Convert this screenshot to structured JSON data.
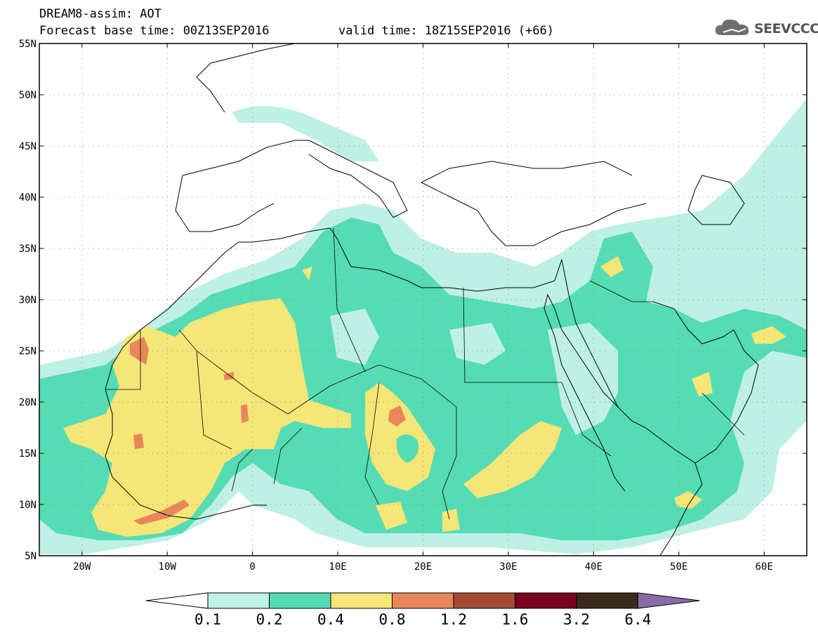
{
  "header": {
    "title_line1": "DREAM8-assim: AOT",
    "title_line2": "Forecast base time: 00Z13SEP2016",
    "valid_time": "valid time: 18Z15SEP2016 (+66)"
  },
  "logo": {
    "text": "SEEVCCC",
    "icon": "cloud-icon"
  },
  "map": {
    "lon_range": [
      -25,
      65
    ],
    "lat_range": [
      5,
      55
    ],
    "y_ticks": [
      "5N",
      "10N",
      "15N",
      "20N",
      "25N",
      "30N",
      "35N",
      "40N",
      "45N",
      "50N",
      "55N"
    ],
    "x_ticks": [
      "20W",
      "10W",
      "0",
      "10E",
      "20E",
      "30E",
      "40E",
      "50E",
      "60E"
    ],
    "grid": "dotted"
  },
  "colorbar": {
    "labels": [
      "0.1",
      "0.2",
      "0.4",
      "0.8",
      "1.2",
      "1.6",
      "3.2",
      "6.4"
    ],
    "colors": [
      "#ffffff",
      "#bff0e6",
      "#55dcb4",
      "#f5e678",
      "#e8875a",
      "#a64a38",
      "#7a0020",
      "#3b2a1a",
      "#8c6aa8"
    ]
  }
}
